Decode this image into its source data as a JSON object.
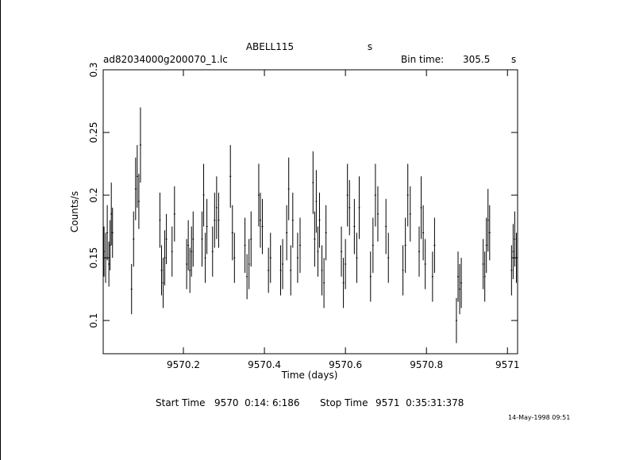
{
  "chart_data": {
    "type": "errorbar",
    "title": "ABELL115",
    "title_unit": "s",
    "filename": "ad82034000g200070_1.lc",
    "bin_time_label": "Bin time:",
    "bin_time": 305.5,
    "bin_time_unit": "s",
    "x_label": "Time (days)",
    "y_label": "Counts/s",
    "start_time_label": "Start Time",
    "start_time": "9570  0:14: 6:186",
    "stop_time_label": "Stop Time",
    "stop_time": "9571  0:35:31:378",
    "date": "14-May-1998 09:51",
    "color": "#000000",
    "xlim": [
      9570.002,
      9571.025
    ],
    "ylim": [
      0.0735,
      0.3
    ],
    "xticks": [
      9570.2,
      9570.4,
      9570.6,
      9570.8,
      9571
    ],
    "yticks": [
      0.1,
      0.15,
      0.2,
      0.25,
      0.3
    ],
    "x": [
      9570.004,
      9570.008,
      9570.012,
      9570.016,
      9570.019,
      9570.022,
      9570.025,
      9570.072,
      9570.077,
      9570.082,
      9570.086,
      9570.09,
      9570.094,
      9570.142,
      9570.146,
      9570.15,
      9570.154,
      9570.158,
      9570.172,
      9570.178,
      9570.208,
      9570.212,
      9570.216,
      9570.22,
      9570.224,
      9570.246,
      9570.25,
      9570.254,
      9570.258,
      9570.272,
      9570.277,
      9570.282,
      9570.287,
      9570.316,
      9570.321,
      9570.326,
      9570.352,
      9570.357,
      9570.362,
      9570.367,
      9570.386,
      9570.39,
      9570.395,
      9570.41,
      9570.415,
      9570.44,
      9570.445,
      9570.455,
      9570.46,
      9570.465,
      9570.47,
      9570.482,
      9570.488,
      9570.52,
      9570.524,
      9570.528,
      9570.532,
      9570.536,
      9570.542,
      9570.547,
      9570.552,
      9570.59,
      9570.595,
      9570.6,
      9570.605,
      9570.61,
      9570.622,
      9570.628,
      9570.634,
      9570.662,
      9570.668,
      9570.674,
      9570.68,
      9570.7,
      9570.706,
      9570.742,
      9570.748,
      9570.754,
      9570.76,
      9570.782,
      9570.787,
      9570.792,
      9570.797,
      9570.815,
      9570.82,
      9570.874,
      9570.878,
      9570.882,
      9570.886,
      9570.94,
      9570.944,
      9570.948,
      9570.952,
      9570.956,
      9571.01,
      9571.014,
      9571.018,
      9571.022
    ],
    "values": [
      0.155,
      0.15,
      0.17,
      0.145,
      0.16,
      0.185,
      0.17,
      0.125,
      0.165,
      0.205,
      0.215,
      0.195,
      0.24,
      0.18,
      0.14,
      0.13,
      0.15,
      0.165,
      0.155,
      0.185,
      0.145,
      0.16,
      0.14,
      0.155,
      0.165,
      0.165,
      0.2,
      0.15,
      0.175,
      0.155,
      0.18,
      0.19,
      0.18,
      0.215,
      0.17,
      0.15,
      0.16,
      0.135,
      0.145,
      0.165,
      0.2,
      0.18,
      0.175,
      0.14,
      0.15,
      0.14,
      0.145,
      0.17,
      0.205,
      0.14,
      0.18,
      0.15,
      0.16,
      0.21,
      0.165,
      0.195,
      0.155,
      0.18,
      0.14,
      0.13,
      0.17,
      0.155,
      0.13,
      0.145,
      0.2,
      0.19,
      0.175,
      0.15,
      0.19,
      0.135,
      0.16,
      0.2,
      0.185,
      0.175,
      0.15,
      0.14,
      0.16,
      0.2,
      0.185,
      0.155,
      0.19,
      0.17,
      0.145,
      0.135,
      0.16,
      0.1,
      0.135,
      0.125,
      0.13,
      0.145,
      0.135,
      0.16,
      0.18,
      0.17,
      0.14,
      0.155,
      0.165,
      0.15
    ],
    "errors": [
      0.02,
      0.02,
      0.022,
      0.018,
      0.02,
      0.025,
      0.02,
      0.02,
      0.022,
      0.025,
      0.025,
      0.022,
      0.03,
      0.022,
      0.02,
      0.02,
      0.022,
      0.02,
      0.02,
      0.022,
      0.02,
      0.02,
      0.018,
      0.02,
      0.022,
      0.022,
      0.025,
      0.02,
      0.022,
      0.02,
      0.022,
      0.025,
      0.022,
      0.025,
      0.022,
      0.02,
      0.022,
      0.018,
      0.02,
      0.022,
      0.025,
      0.022,
      0.022,
      0.018,
      0.02,
      0.02,
      0.02,
      0.022,
      0.025,
      0.02,
      0.022,
      0.02,
      0.022,
      0.025,
      0.022,
      0.025,
      0.02,
      0.022,
      0.02,
      0.02,
      0.022,
      0.02,
      0.02,
      0.02,
      0.025,
      0.022,
      0.022,
      0.02,
      0.025,
      0.02,
      0.022,
      0.025,
      0.022,
      0.022,
      0.02,
      0.02,
      0.022,
      0.025,
      0.022,
      0.02,
      0.025,
      0.022,
      0.02,
      0.02,
      0.022,
      0.018,
      0.02,
      0.02,
      0.02,
      0.02,
      0.02,
      0.022,
      0.025,
      0.022,
      0.02,
      0.022,
      0.022,
      0.02
    ]
  }
}
